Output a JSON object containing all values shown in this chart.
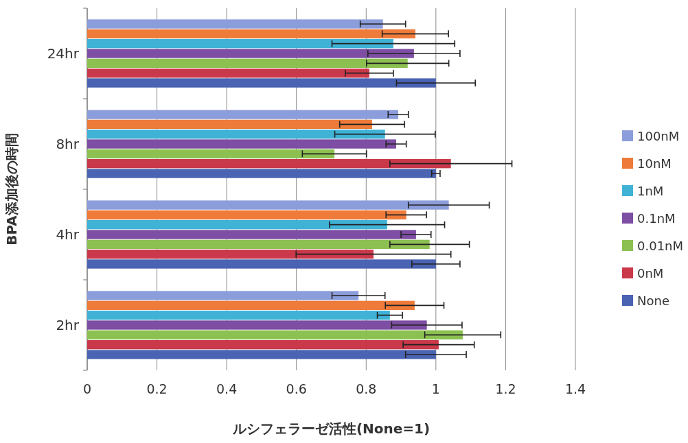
{
  "chart_data": {
    "type": "bar",
    "orientation": "horizontal",
    "xlabel": "ルシフェラーゼ活性(None=1)",
    "ylabel": "BPA添加後の時間",
    "categories": [
      "24hr",
      "8hr",
      "4hr",
      "2hr"
    ],
    "series": [
      {
        "name": "100nM",
        "color": "#8c9ddb",
        "values": [
          0.848,
          0.892,
          1.037,
          0.778
        ],
        "errors": [
          0.065,
          0.029,
          0.116,
          0.076
        ]
      },
      {
        "name": "10nM",
        "color": "#ee7b3a",
        "values": [
          0.941,
          0.817,
          0.915,
          0.939
        ],
        "errors": [
          0.095,
          0.093,
          0.058,
          0.084
        ]
      },
      {
        "name": "1nM",
        "color": "#3fb2d6",
        "values": [
          0.878,
          0.854,
          0.86,
          0.868
        ],
        "errors": [
          0.176,
          0.144,
          0.165,
          0.036
        ]
      },
      {
        "name": "0.1nM",
        "color": "#7d4ea3",
        "values": [
          0.937,
          0.886,
          0.943,
          0.974
        ],
        "errors": [
          0.132,
          0.029,
          0.043,
          0.101
        ]
      },
      {
        "name": "0.01nM",
        "color": "#8cc152",
        "values": [
          0.919,
          0.709,
          0.982,
          1.077
        ],
        "errors": [
          0.118,
          0.092,
          0.114,
          0.109
        ]
      },
      {
        "name": "0nM",
        "color": "#c9394a",
        "values": [
          0.809,
          1.043,
          0.821,
          1.008
        ],
        "errors": [
          0.069,
          0.175,
          0.222,
          0.102
        ]
      },
      {
        "name": "None",
        "color": "#4a63b3",
        "values": [
          1.0,
          1.0,
          1.0,
          1.0
        ],
        "errors": [
          0.113,
          0.012,
          0.069,
          0.087
        ]
      }
    ],
    "xlim": [
      0,
      1.4
    ],
    "xticks": [
      0,
      0.2,
      0.4,
      0.6,
      0.8,
      1,
      1.2,
      1.4
    ],
    "grid": "x",
    "legend": "right"
  }
}
